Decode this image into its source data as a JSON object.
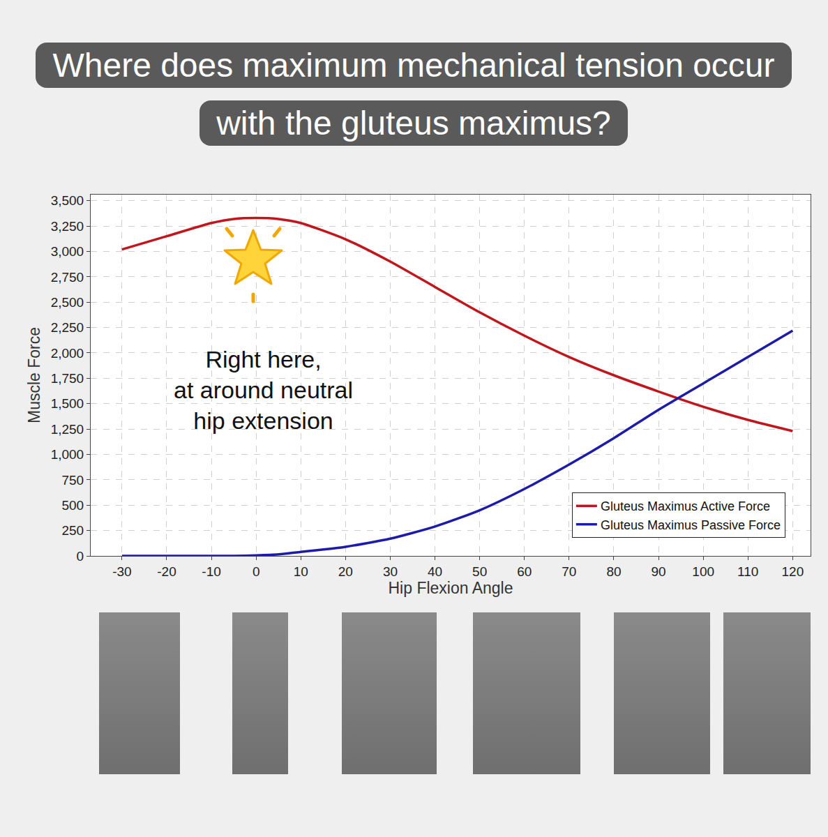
{
  "chart_data": {
    "type": "line",
    "title": "Where does maximum mechanical tension occur with the gluteus maximus?",
    "annotation": [
      "Right here,",
      "at around neutral",
      "hip extension"
    ],
    "xlabel": "Hip Flexion Angle",
    "ylabel": "Muscle Force",
    "x": [
      -30,
      -20,
      -10,
      -5,
      0,
      5,
      10,
      20,
      30,
      40,
      50,
      60,
      70,
      80,
      90,
      100,
      110,
      120
    ],
    "series": [
      {
        "name": "Gluteus Maximus Active Force",
        "color": "#c0171d",
        "values": [
          3020,
          3150,
          3280,
          3320,
          3330,
          3320,
          3280,
          3120,
          2900,
          2650,
          2400,
          2170,
          1960,
          1780,
          1620,
          1470,
          1340,
          1230
        ]
      },
      {
        "name": "Gluteus Maximus Passive Force",
        "color": "#1c1ca8",
        "values": [
          0,
          0,
          0,
          0,
          5,
          15,
          40,
          90,
          170,
          290,
          450,
          660,
          900,
          1160,
          1440,
          1700,
          1960,
          2220
        ]
      }
    ],
    "xlim": [
      -37,
      124
    ],
    "ylim": [
      0,
      3560
    ],
    "xticks": [
      -30,
      -20,
      -10,
      0,
      10,
      20,
      30,
      40,
      50,
      60,
      70,
      80,
      90,
      100,
      110,
      120
    ],
    "yticks": [
      0,
      250,
      500,
      750,
      {
        "value": 1000,
        "label": "1,000"
      },
      {
        "value": 1250,
        "label": "1,250"
      },
      {
        "value": 1500,
        "label": "1,500"
      },
      {
        "value": 1750,
        "label": "1,750"
      },
      {
        "value": 2000,
        "label": "2,000"
      },
      {
        "value": 2250,
        "label": "2,250"
      },
      {
        "value": 2500,
        "label": "2,500"
      },
      {
        "value": 2750,
        "label": "2,750"
      },
      {
        "value": 3000,
        "label": "3,000"
      },
      {
        "value": 3250,
        "label": "3,250"
      },
      {
        "value": 3500,
        "label": "3,500"
      }
    ],
    "grid": true,
    "legend": "bottom right"
  }
}
